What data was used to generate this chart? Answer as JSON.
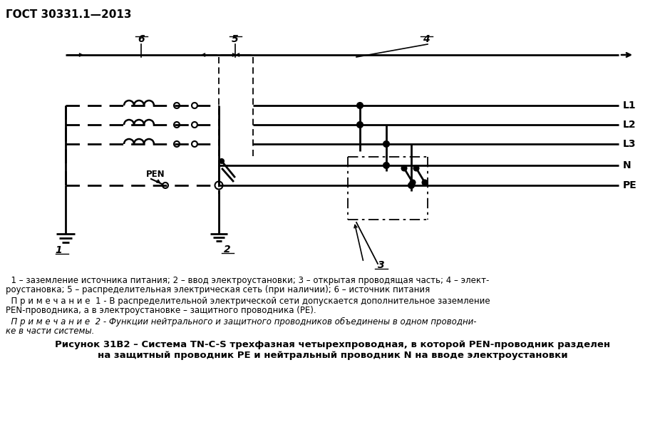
{
  "title_gost": "ГОСТ 30331.1—2013",
  "bg_color": "#ffffff",
  "lw": 2.0,
  "line_labels": [
    "L1",
    "L2",
    "L3",
    "N",
    "PE"
  ],
  "cap1": "  1 – заземление источника питания; 2 – ввод электроустановки; 3 – открытая проводящая часть; 4 – элект-",
  "cap2": "роустановка; 5 – распределительная электрическая сеть (при наличии); 6 – источник питания",
  "n1a": "  П р и м е ч а н и е  1 - В распределительной электрической сети допускается дополнительное заземление",
  "n1b": "PEN-проводника, а в электроустановке – защитного проводника (PE).",
  "n2a": "  П р и м е ч а н и е  2 - Функции нейтрального и защитного проводников объединены в одном проводни-",
  "n2b": "ке в части системы.",
  "fc1": "Рисунок 31В2 – Система TN-C-S трехфазная четырехпроводная, в которой PEN-проводник разделен",
  "fc2": "на защитный проводник PE и нейтральный проводник N на вводе электроустановки"
}
